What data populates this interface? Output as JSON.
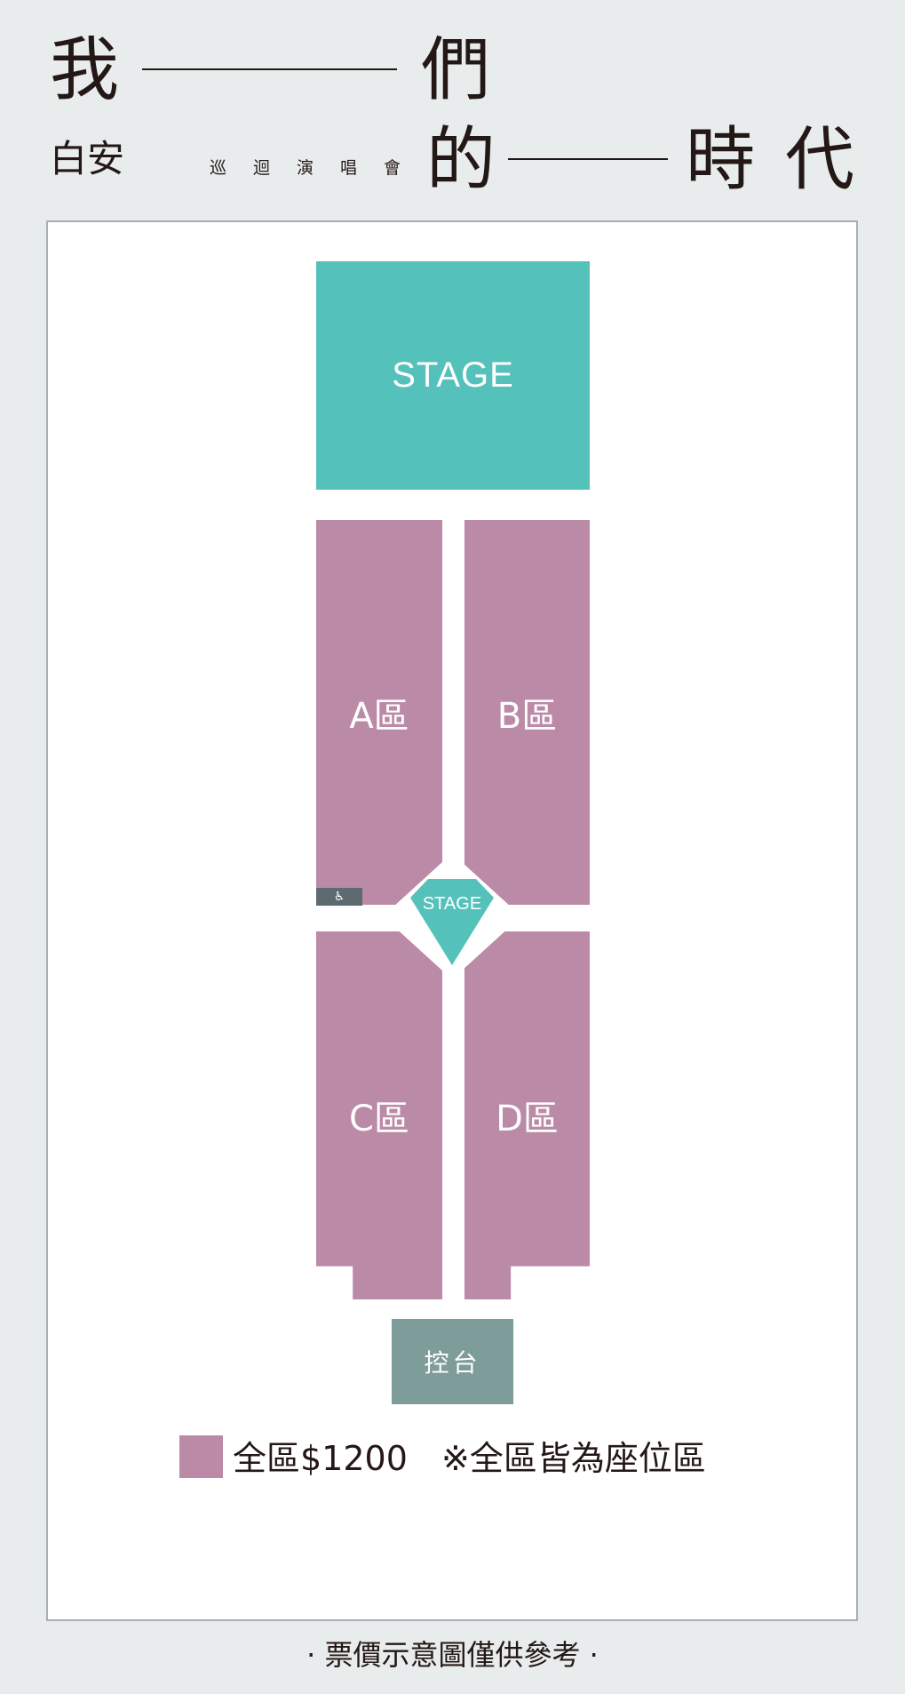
{
  "header": {
    "title_char_1": "我",
    "title_char_2": "們",
    "title_char_3": "的",
    "title_char_4": "時",
    "title_char_5": "代",
    "artist": "白安",
    "subtitle_chars": [
      "巡",
      "迴",
      "演",
      "唱",
      "會"
    ]
  },
  "map": {
    "main_stage_label": "STAGE",
    "center_stage_label": "STAGE",
    "zones": {
      "a": "A區",
      "b": "B區",
      "c": "C區",
      "d": "D區"
    },
    "accessibility_icon": "wheelchair-icon",
    "accessibility_symbol": "♿",
    "console_label": "控台"
  },
  "legend": {
    "price_text": "全區$1200",
    "note_text": "※全區皆為座位區"
  },
  "footer": {
    "note": "· 票價示意圖僅供參考 ·"
  },
  "colors": {
    "background": "#e8ecec",
    "stage": "#55c1bb",
    "zone": "#bb8aa6",
    "console": "#7d9c9a",
    "accessibility_badge": "#5d6a70",
    "text": "#231815"
  }
}
